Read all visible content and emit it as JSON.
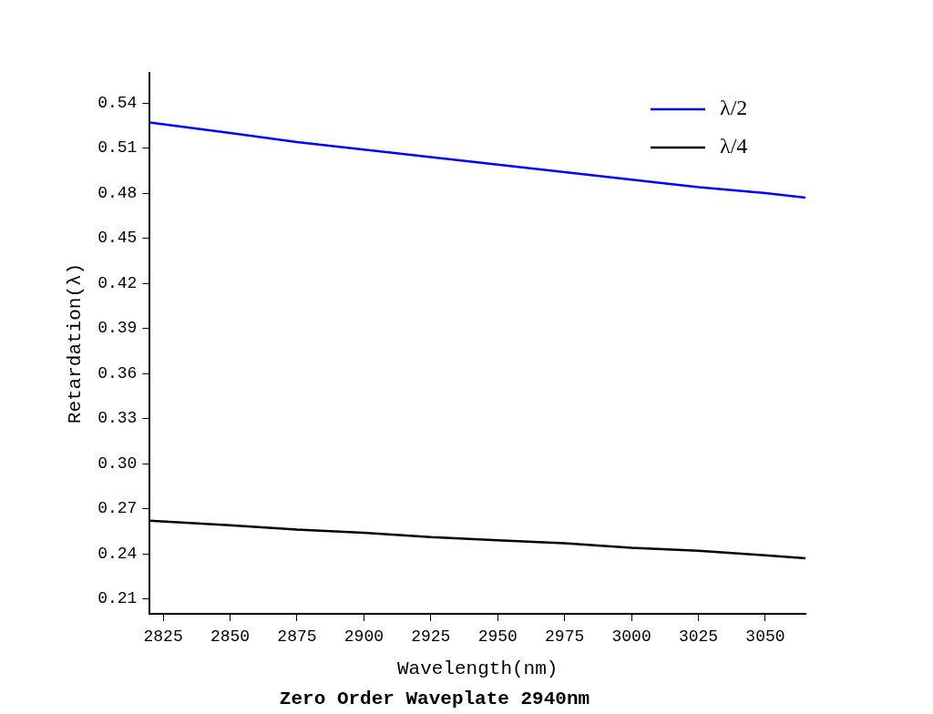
{
  "chart_data": {
    "type": "line",
    "title": "Zero Order Waveplate 2940nm",
    "x_label": "Wavelength(nm)",
    "y_label": "Retardation(λ)",
    "series": [
      {
        "name": "λ/2",
        "color": "#0000ff",
        "x": [
          2820,
          2850,
          2875,
          2900,
          2925,
          2950,
          2975,
          3000,
          3025,
          3050,
          3065
        ],
        "values": [
          0.527,
          0.52,
          0.514,
          0.509,
          0.504,
          0.499,
          0.494,
          0.489,
          0.484,
          0.48,
          0.477
        ]
      },
      {
        "name": "λ/4",
        "color": "#000000",
        "x": [
          2820,
          2850,
          2875,
          2900,
          2925,
          2950,
          2975,
          3000,
          3025,
          3050,
          3065
        ],
        "values": [
          0.262,
          0.259,
          0.256,
          0.254,
          0.251,
          0.249,
          0.247,
          0.244,
          0.242,
          0.239,
          0.237
        ]
      }
    ],
    "xlim": [
      2820,
      3065
    ],
    "xticks": [
      2825,
      2850,
      2875,
      2900,
      2925,
      2950,
      2975,
      3000,
      3025,
      3050
    ],
    "ylim": [
      0.2,
      0.56
    ],
    "yticks": [
      0.21,
      0.24,
      0.27,
      {
        "value": 0.3,
        "label": "0.30"
      },
      0.33,
      0.36,
      0.39,
      0.42,
      0.45,
      0.48,
      0.51,
      0.54
    ],
    "legend": "upper right",
    "grid": false
  }
}
